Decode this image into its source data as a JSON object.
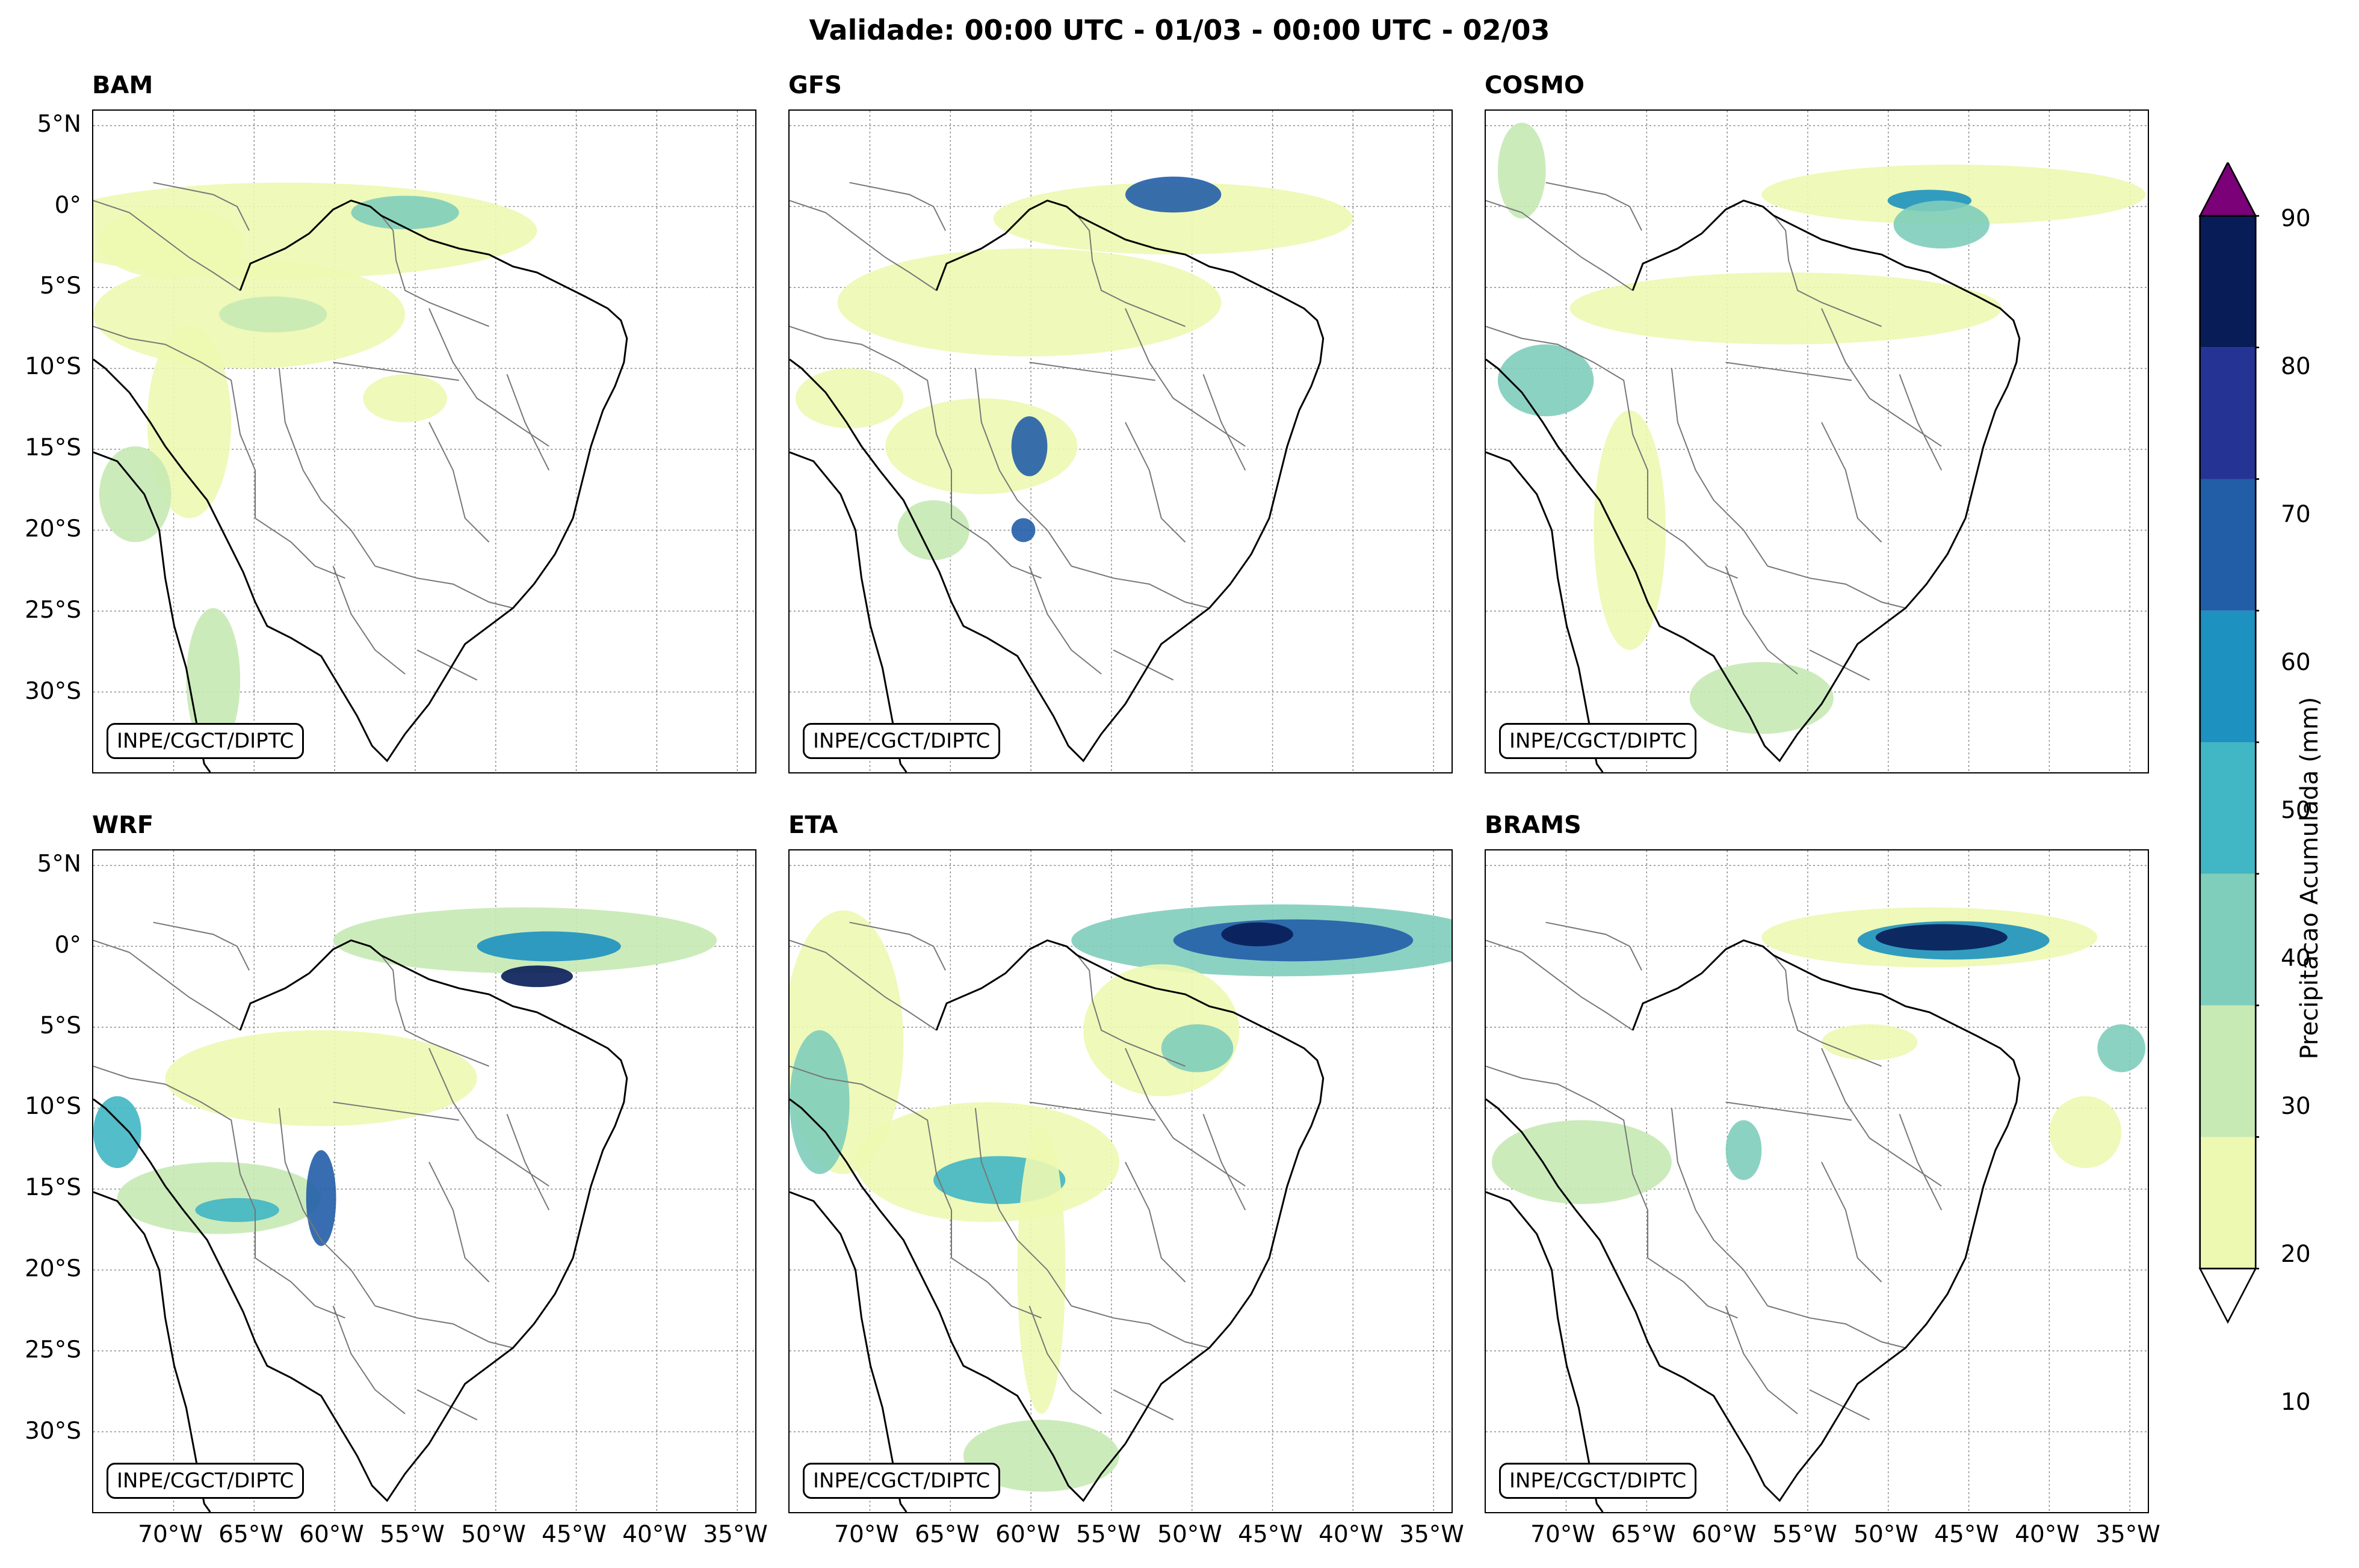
{
  "title": "Validade: 00:00 UTC - 01/03 - 00:00 UTC - 02/03",
  "credit": "INPE/CGCT/DIPTC",
  "panels": [
    {
      "name": "BAM"
    },
    {
      "name": "GFS"
    },
    {
      "name": "COSMO"
    },
    {
      "name": "WRF"
    },
    {
      "name": "ETA"
    },
    {
      "name": "BRAMS"
    }
  ],
  "lat_labels": [
    "5°N",
    "0°",
    "5°S",
    "10°S",
    "15°S",
    "20°S",
    "25°S",
    "30°S"
  ],
  "lon_labels": [
    "70°W",
    "65°W",
    "60°W",
    "55°W",
    "50°W",
    "45°W",
    "40°W",
    "35°W"
  ],
  "colorbar": {
    "label": "Precipitacao Acumulada (mm)",
    "ticks": [
      "10",
      "20",
      "30",
      "40",
      "50",
      "60",
      "70",
      "80",
      "90"
    ],
    "colors": [
      "#edf8b1",
      "#c7e9b4",
      "#7fcdbb",
      "#41b6c4",
      "#1d91c0",
      "#225ea8",
      "#253494",
      "#081d58"
    ],
    "over_color": "#7a0177"
  }
}
